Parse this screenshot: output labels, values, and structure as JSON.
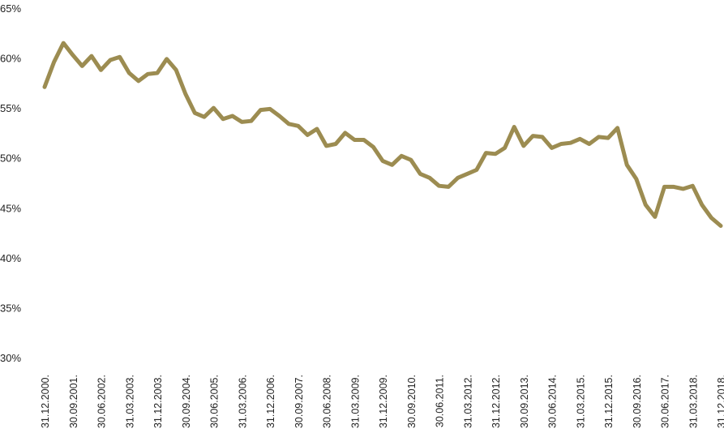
{
  "chart_data": {
    "type": "line",
    "categories": [
      "31.12.2000.",
      null,
      null,
      "30.09.2001.",
      null,
      null,
      "30.06.2002.",
      null,
      null,
      "31.03.2003.",
      null,
      null,
      "31.12.2003.",
      null,
      null,
      "30.09.2004.",
      null,
      null,
      "30.06.2005.",
      null,
      null,
      "31.03.2006.",
      null,
      null,
      "31.12.2006.",
      null,
      null,
      "30.09.2007.",
      null,
      null,
      "30.06.2008.",
      null,
      null,
      "31.03.2009.",
      null,
      null,
      "31.12.2009.",
      null,
      null,
      "30.09.2010.",
      null,
      null,
      "30.06.2011.",
      null,
      null,
      "31.03.2012.",
      null,
      null,
      "31.12.2012.",
      null,
      null,
      "30.09.2013.",
      null,
      null,
      "30.06.2014.",
      null,
      null,
      "31.03.2015.",
      null,
      null,
      "31.12.2015.",
      null,
      null,
      "30.09.2016.",
      null,
      null,
      "30.06.2017.",
      null,
      null,
      "31.03.2018.",
      null,
      null,
      "31.12.2018."
    ],
    "series": [
      {
        "color": "#9c8c51",
        "values": [
          57.1,
          59.6,
          61.5,
          60.3,
          59.2,
          60.2,
          58.8,
          59.8,
          60.1,
          58.5,
          57.7,
          58.4,
          58.5,
          59.9,
          58.8,
          56.4,
          54.5,
          54.1,
          55.0,
          53.9,
          54.2,
          53.6,
          53.7,
          54.8,
          54.9,
          54.2,
          53.4,
          53.2,
          52.3,
          52.9,
          51.2,
          51.4,
          52.5,
          51.8,
          51.8,
          51.1,
          49.7,
          49.3,
          50.2,
          49.8,
          48.4,
          48.0,
          47.2,
          47.1,
          48.0,
          48.4,
          48.8,
          50.5,
          50.4,
          51.0,
          53.1,
          51.2,
          52.2,
          52.1,
          51.0,
          51.4,
          51.5,
          51.9,
          51.4,
          52.1,
          52.0,
          53.0,
          49.3,
          47.9,
          45.3,
          44.1,
          47.1,
          47.1,
          46.9,
          47.2,
          45.3,
          44.0,
          43.2
        ]
      }
    ],
    "ylim": [
      30,
      65
    ],
    "yticks": [
      {
        "value": 30,
        "label": "30%"
      },
      {
        "value": 35,
        "label": "35%"
      },
      {
        "value": 40,
        "label": "40%"
      },
      {
        "value": 45,
        "label": "45%"
      },
      {
        "value": 50,
        "label": "50%"
      },
      {
        "value": 55,
        "label": "55%"
      },
      {
        "value": 60,
        "label": "60%"
      },
      {
        "value": 65,
        "label": "65%"
      }
    ],
    "grid": false
  }
}
